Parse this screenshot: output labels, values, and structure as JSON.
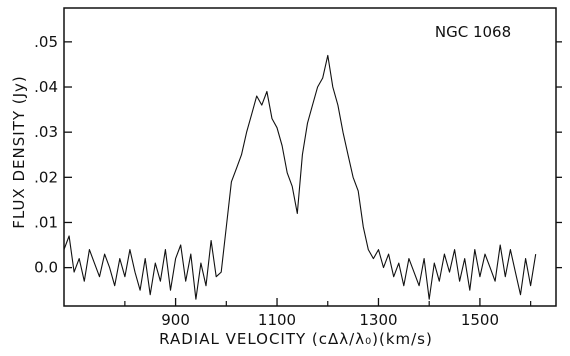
{
  "chart_data": {
    "type": "line",
    "title": "",
    "annotation": "NGC 1068",
    "xlabel": "RADIAL VELOCITY  (cΔλ/λ₀)(km/s)",
    "ylabel": "FLUX DENSITY (Jy)",
    "xlim": [
      680,
      1650
    ],
    "ylim": [
      -0.0085,
      0.0575
    ],
    "x_ticks": [
      900,
      1100,
      1300,
      1500
    ],
    "x_tick_labels": [
      "900",
      "1100",
      "1300",
      "1500"
    ],
    "y_ticks": [
      0.0,
      0.01,
      0.02,
      0.03,
      0.04,
      0.05
    ],
    "y_tick_labels": [
      "0.0",
      ".01",
      ".02",
      ".03",
      ".04",
      ".05"
    ],
    "grid": false,
    "series": [
      {
        "x": [
          680,
          690,
          700,
          710,
          720,
          730,
          740,
          750,
          760,
          770,
          780,
          790,
          800,
          810,
          820,
          830,
          840,
          850,
          860,
          870,
          880,
          890,
          900,
          910,
          920,
          930,
          940,
          950,
          960,
          970,
          980,
          990,
          1000,
          1010,
          1020,
          1030,
          1040,
          1050,
          1060,
          1070,
          1080,
          1090,
          1100,
          1110,
          1120,
          1130,
          1140,
          1150,
          1160,
          1170,
          1180,
          1190,
          1200,
          1210,
          1220,
          1230,
          1240,
          1250,
          1260,
          1270,
          1280,
          1290,
          1300,
          1310,
          1320,
          1330,
          1340,
          1350,
          1360,
          1370,
          1380,
          1390,
          1400,
          1410,
          1420,
          1430,
          1440,
          1450,
          1460,
          1470,
          1480,
          1490,
          1500,
          1510,
          1520,
          1530,
          1540,
          1550,
          1560,
          1570,
          1580,
          1590,
          1600,
          1610
        ],
        "y": [
          0.004,
          0.007,
          -0.001,
          0.002,
          -0.003,
          0.004,
          0.001,
          -0.002,
          0.003,
          0.0,
          -0.004,
          0.002,
          -0.002,
          0.004,
          -0.001,
          -0.005,
          0.002,
          -0.006,
          0.001,
          -0.003,
          0.004,
          -0.005,
          0.002,
          0.005,
          -0.003,
          0.003,
          -0.007,
          0.001,
          -0.004,
          0.006,
          -0.002,
          -0.001,
          0.009,
          0.019,
          0.022,
          0.025,
          0.03,
          0.034,
          0.038,
          0.036,
          0.039,
          0.033,
          0.031,
          0.027,
          0.021,
          0.018,
          0.012,
          0.025,
          0.032,
          0.036,
          0.04,
          0.042,
          0.047,
          0.04,
          0.036,
          0.03,
          0.025,
          0.02,
          0.017,
          0.009,
          0.004,
          0.002,
          0.004,
          0.0,
          0.003,
          -0.002,
          0.001,
          -0.004,
          0.002,
          -0.001,
          -0.004,
          0.002,
          -0.007,
          0.001,
          -0.003,
          0.003,
          -0.001,
          0.004,
          -0.003,
          0.002,
          -0.005,
          0.004,
          -0.002,
          0.003,
          0.0,
          -0.003,
          0.005,
          -0.002,
          0.004,
          -0.001,
          -0.006,
          0.002,
          -0.004,
          0.003
        ]
      }
    ]
  }
}
